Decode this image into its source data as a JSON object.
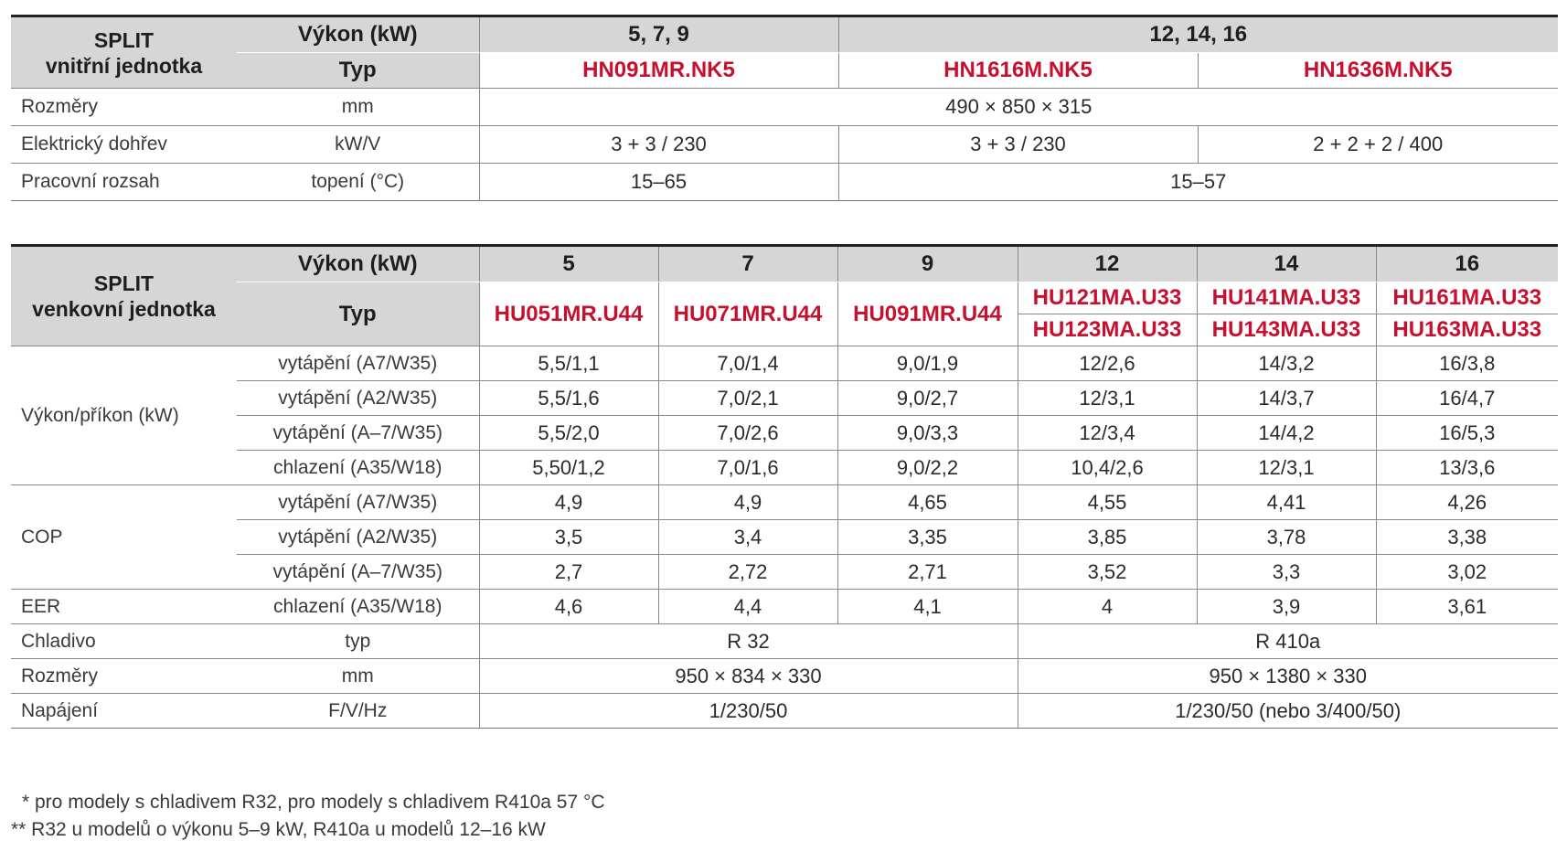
{
  "indoor": {
    "split_title": "SPLIT",
    "split_subtitle": "vnitřní jednotka",
    "vykon_label": "Výkon (kW)",
    "typ_label": "Typ",
    "groups": [
      "5, 7, 9",
      "12, 14, 16"
    ],
    "models": [
      "HN091MR.NK5",
      "HN1616M.NK5",
      "HN1636M.NK5"
    ],
    "rows": [
      {
        "label": "Rozměry",
        "unit": "mm",
        "values": [
          "490 × 850 × 315"
        ]
      },
      {
        "label": "Elektrický dohřev",
        "unit": "kW/V",
        "values": [
          "3 + 3 / 230",
          "3 + 3 / 230",
          "2 + 2 + 2 / 400"
        ]
      },
      {
        "label": "Pracovní rozsah",
        "unit": "topení (°C)",
        "values": [
          "15–65",
          "15–57"
        ]
      }
    ]
  },
  "outdoor": {
    "split_title": "SPLIT",
    "split_subtitle": "venkovní jednotka",
    "vykon_label": "Výkon (kW)",
    "typ_label": "Typ",
    "capacities": [
      "5",
      "7",
      "9",
      "12",
      "14",
      "16"
    ],
    "models_a": [
      "HU051MR.U44",
      "HU071MR.U44",
      "HU091MR.U44",
      "HU121MA.U33",
      "HU141MA.U33",
      "HU161MA.U33"
    ],
    "models_b": [
      "HU123MA.U33",
      "HU143MA.U33",
      "HU163MA.U33"
    ],
    "power": {
      "label": "Výkon/příkon (kW)",
      "rows": [
        {
          "cond": "vytápění (A7/W35)",
          "values": [
            "5,5/1,1",
            "7,0/1,4",
            "9,0/1,9",
            "12/2,6",
            "14/3,2",
            "16/3,8"
          ]
        },
        {
          "cond": "vytápění (A2/W35)",
          "values": [
            "5,5/1,6",
            "7,0/2,1",
            "9,0/2,7",
            "12/3,1",
            "14/3,7",
            "16/4,7"
          ]
        },
        {
          "cond": "vytápění (A–7/W35)",
          "values": [
            "5,5/2,0",
            "7,0/2,6",
            "9,0/3,3",
            "12/3,4",
            "14/4,2",
            "16/5,3"
          ]
        },
        {
          "cond": "chlazení (A35/W18)",
          "values": [
            "5,50/1,2",
            "7,0/1,6",
            "9,0/2,2",
            "10,4/2,6",
            "12/3,1",
            "13/3,6"
          ]
        }
      ]
    },
    "cop": {
      "label": "COP",
      "rows": [
        {
          "cond": "vytápění (A7/W35)",
          "values": [
            "4,9",
            "4,9",
            "4,65",
            "4,55",
            "4,41",
            "4,26"
          ]
        },
        {
          "cond": "vytápění (A2/W35)",
          "values": [
            "3,5",
            "3,4",
            "3,35",
            "3,85",
            "3,78",
            "3,38"
          ]
        },
        {
          "cond": "vytápění (A–7/W35)",
          "values": [
            "2,7",
            "2,72",
            "2,71",
            "3,52",
            "3,3",
            "3,02"
          ]
        }
      ]
    },
    "eer": {
      "label": "EER",
      "cond": "chlazení (A35/W18)",
      "values": [
        "4,6",
        "4,4",
        "4,1",
        "4",
        "3,9",
        "3,61"
      ]
    },
    "refrigerant": {
      "label": "Chladivo",
      "unit": "typ",
      "values": [
        "R 32",
        "R 410a"
      ]
    },
    "dimensions": {
      "label": "Rozměry",
      "unit": "mm",
      "values": [
        "950 × 834 × 330",
        "950 × 1380 × 330"
      ]
    },
    "supply": {
      "label": "Napájení",
      "unit": "F/V/Hz",
      "values": [
        "1/230/50",
        "1/230/50 (nebo 3/400/50)"
      ]
    }
  },
  "footnotes": [
    "* pro modely s chladivem R32, pro modely s chladivem R410a 57 °C",
    "** R32 u modelů o výkonu 5–9 kW, R410a u modelů 12–16 kW"
  ]
}
